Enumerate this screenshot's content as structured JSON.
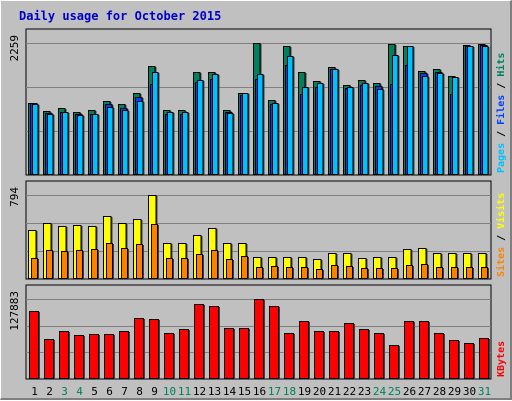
{
  "chart_data": {
    "type": "bar",
    "title": "Daily usage for October 2015",
    "categories": [
      "1",
      "2",
      "3",
      "4",
      "5",
      "6",
      "7",
      "8",
      "9",
      "10",
      "11",
      "12",
      "13",
      "14",
      "15",
      "16",
      "17",
      "18",
      "19",
      "20",
      "21",
      "22",
      "23",
      "24",
      "25",
      "26",
      "27",
      "28",
      "29",
      "30",
      "31"
    ],
    "weekend_days": [
      3,
      4,
      10,
      11,
      17,
      18,
      24,
      25,
      31
    ],
    "colors": {
      "title": "#0000cc",
      "hits": "#00805c",
      "files": "#0040ff",
      "pages": "#00c0ff",
      "visits": "#ffff00",
      "sites": "#ff8000",
      "kbytes": "#ff0000",
      "weekday_label": "#000000",
      "weekend_label": "#00805c"
    },
    "panels": [
      {
        "name": "hits-files-pages",
        "ymax_label": "2259",
        "ymax": 2259,
        "side_labels": [
          {
            "text": "Pages",
            "color": "#00c0ff"
          },
          {
            "text": " / ",
            "color": "#000000"
          },
          {
            "text": "Files",
            "color": "#0040ff"
          },
          {
            "text": " / ",
            "color": "#000000"
          },
          {
            "text": "Hits",
            "color": "#00805c"
          }
        ],
        "series": [
          {
            "name": "Hits",
            "values": [
              1240,
              1100,
              1140,
              1080,
              1120,
              1260,
              1220,
              1410,
              1860,
              1120,
              1120,
              1760,
              1770,
              1110,
              1410,
              2259,
              1280,
              2200,
              1760,
              1610,
              1840,
              1540,
              1620,
              1570,
              2240,
              2200,
              1780,
              1820,
              1690,
              2230,
              2240
            ]
          },
          {
            "name": "Files",
            "values": [
              1230,
              1060,
              1080,
              1040,
              1040,
              1210,
              1150,
              1330,
              1550,
              1040,
              1050,
              1600,
              1640,
              1080,
              1370,
              1650,
              1220,
              1880,
              1380,
              1510,
              1810,
              1490,
              1540,
              1530,
              1560,
              1880,
              1750,
              1770,
              1380,
              2210,
              2220
            ]
          },
          {
            "name": "Pages",
            "values": [
              1210,
              1050,
              1070,
              1020,
              1050,
              1160,
              1120,
              1260,
              1760,
              1070,
              1070,
              1630,
              1720,
              1060,
              1400,
              1730,
              1230,
              2040,
              1500,
              1580,
              1820,
              1510,
              1570,
              1480,
              2050,
              2200,
              1700,
              1740,
              1670,
              2200,
              2200
            ]
          }
        ]
      },
      {
        "name": "visits-sites",
        "ymax_label": "794",
        "ymax": 794,
        "side_labels": [
          {
            "text": "Sites",
            "color": "#ff8000"
          },
          {
            "text": " / ",
            "color": "#000000"
          },
          {
            "text": "Visits",
            "color": "#ffff00"
          }
        ],
        "series": [
          {
            "name": "Visits",
            "values": [
              460,
              530,
              500,
              510,
              500,
              600,
              530,
              570,
              794,
              340,
              340,
              420,
              480,
              340,
              340,
              210,
              210,
              210,
              210,
              190,
              250,
              250,
              200,
              210,
              210,
              280,
              290,
              250,
              250,
              250,
              250
            ]
          },
          {
            "name": "Sites",
            "values": [
              200,
              270,
              260,
              270,
              280,
              340,
              290,
              330,
              520,
              200,
              200,
              240,
              270,
              190,
              220,
              110,
              120,
              110,
              110,
              90,
              130,
              120,
              100,
              100,
              100,
              130,
              140,
              110,
              110,
              110,
              110
            ]
          }
        ]
      },
      {
        "name": "kbytes",
        "ymax_label": "127883",
        "ymax": 127883,
        "side_labels": [
          {
            "text": "KBytes",
            "color": "#ff0000"
          }
        ],
        "series": [
          {
            "name": "KBytes",
            "values": [
              108000,
              64000,
              76000,
              70000,
              72000,
              72000,
              76000,
              97000,
              96000,
              74000,
              80000,
              120000,
              117000,
              82000,
              82000,
              127883,
              117000,
              74000,
              93000,
              76000,
              76000,
              89000,
              80000,
              73000,
              54000,
              92000,
              92000,
              73000,
              62000,
              57000,
              65000
            ]
          }
        ]
      }
    ]
  }
}
